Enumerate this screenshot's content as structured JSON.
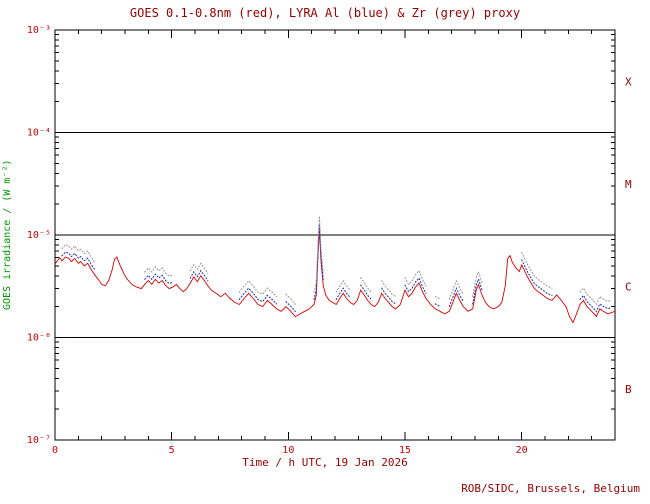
{
  "chart_data": {
    "type": "line",
    "title": "GOES 0.1-0.8nm (red), LYRA Al (blue) & Zr (grey) proxy",
    "xlabel": "Time / h UTC, 19 Jan 2026",
    "ylabel": "GOES irradiance / (W m⁻²)",
    "footer": "ROB/SIDC, Brussels, Belgium",
    "xlim": [
      0,
      24
    ],
    "ylim_exp": [
      -7,
      -3
    ],
    "grid": "off",
    "legend": "none (colors named in title)",
    "x_major_ticks": [
      0,
      5,
      10,
      15,
      20
    ],
    "x_minor_step": 1,
    "y_tick_labels": [
      {
        "exp": -3,
        "label": "10⁻³"
      },
      {
        "exp": -4,
        "label": "10⁻⁴"
      },
      {
        "exp": -5,
        "label": "10⁻⁵"
      },
      {
        "exp": -6,
        "label": "10⁻⁶"
      },
      {
        "exp": -7,
        "label": "10⁻⁷"
      }
    ],
    "hlines_exp": [
      -4,
      -5,
      -6
    ],
    "flare_classes": [
      {
        "label": "X",
        "center_exp": -3.5
      },
      {
        "label": "M",
        "center_exp": -4.5
      },
      {
        "label": "C",
        "center_exp": -5.5
      },
      {
        "label": "B",
        "center_exp": -6.5
      }
    ],
    "colors": {
      "goes": "#dd0000",
      "al": "#2233bb",
      "zr": "#999999",
      "frame": "#000000",
      "tick_text": "#cc0000",
      "class_text": "#990000",
      "title_text": "#990000",
      "ylabel_text": "#009900",
      "footer_text": "#990000"
    },
    "series": [
      {
        "name": "GOES 0.1-0.8nm",
        "color_key": "goes",
        "style": "solid",
        "points": [
          [
            0.0,
            5.2e-06
          ],
          [
            0.1,
            5.6e-06
          ],
          [
            0.2,
            6e-06
          ],
          [
            0.3,
            5.6e-06
          ],
          [
            0.45,
            6.1e-06
          ],
          [
            0.6,
            5.9e-06
          ],
          [
            0.7,
            5.5e-06
          ],
          [
            0.85,
            5.9e-06
          ],
          [
            1.0,
            5.3e-06
          ],
          [
            1.1,
            5.5e-06
          ],
          [
            1.25,
            5e-06
          ],
          [
            1.4,
            5.3e-06
          ],
          [
            1.55,
            4.6e-06
          ],
          [
            1.7,
            4.1e-06
          ],
          [
            1.85,
            3.7e-06
          ],
          [
            2.0,
            3.3e-06
          ],
          [
            2.15,
            3.2e-06
          ],
          [
            2.3,
            3.6e-06
          ],
          [
            2.45,
            4.6e-06
          ],
          [
            2.55,
            5.8e-06
          ],
          [
            2.65,
            6.1e-06
          ],
          [
            2.8,
            5e-06
          ],
          [
            2.95,
            4.2e-06
          ],
          [
            3.1,
            3.7e-06
          ],
          [
            3.3,
            3.3e-06
          ],
          [
            3.5,
            3.1e-06
          ],
          [
            3.7,
            3e-06
          ],
          [
            3.85,
            3.3e-06
          ],
          [
            4.0,
            3.6e-06
          ],
          [
            4.15,
            3.3e-06
          ],
          [
            4.3,
            3.7e-06
          ],
          [
            4.45,
            3.4e-06
          ],
          [
            4.6,
            3.6e-06
          ],
          [
            4.75,
            3.2e-06
          ],
          [
            4.9,
            3e-06
          ],
          [
            5.05,
            3.1e-06
          ],
          [
            5.2,
            3.3e-06
          ],
          [
            5.35,
            3e-06
          ],
          [
            5.5,
            2.8e-06
          ],
          [
            5.65,
            3e-06
          ],
          [
            5.8,
            3.4e-06
          ],
          [
            5.95,
            3.9e-06
          ],
          [
            6.1,
            3.5e-06
          ],
          [
            6.25,
            4e-06
          ],
          [
            6.4,
            3.6e-06
          ],
          [
            6.55,
            3.2e-06
          ],
          [
            6.7,
            2.9e-06
          ],
          [
            6.9,
            2.7e-06
          ],
          [
            7.1,
            2.5e-06
          ],
          [
            7.3,
            2.7e-06
          ],
          [
            7.5,
            2.4e-06
          ],
          [
            7.7,
            2.2e-06
          ],
          [
            7.9,
            2.1e-06
          ],
          [
            8.1,
            2.4e-06
          ],
          [
            8.3,
            2.7e-06
          ],
          [
            8.5,
            2.4e-06
          ],
          [
            8.7,
            2.1e-06
          ],
          [
            8.9,
            2e-06
          ],
          [
            9.1,
            2.3e-06
          ],
          [
            9.3,
            2.1e-06
          ],
          [
            9.5,
            1.9e-06
          ],
          [
            9.7,
            1.8e-06
          ],
          [
            9.9,
            2e-06
          ],
          [
            10.1,
            1.8e-06
          ],
          [
            10.3,
            1.6e-06
          ],
          [
            10.5,
            1.7e-06
          ],
          [
            10.7,
            1.8e-06
          ],
          [
            10.9,
            1.9e-06
          ],
          [
            11.1,
            2.1e-06
          ],
          [
            11.2,
            2.6e-06
          ],
          [
            11.28,
            7e-06
          ],
          [
            11.33,
            1.15e-05
          ],
          [
            11.4,
            5.5e-06
          ],
          [
            11.5,
            3.2e-06
          ],
          [
            11.6,
            2.6e-06
          ],
          [
            11.75,
            2.3e-06
          ],
          [
            11.9,
            2.2e-06
          ],
          [
            12.05,
            2.1e-06
          ],
          [
            12.2,
            2.4e-06
          ],
          [
            12.35,
            2.7e-06
          ],
          [
            12.5,
            2.4e-06
          ],
          [
            12.65,
            2.2e-06
          ],
          [
            12.8,
            2.1e-06
          ],
          [
            12.95,
            2.3e-06
          ],
          [
            13.1,
            2.9e-06
          ],
          [
            13.25,
            2.6e-06
          ],
          [
            13.4,
            2.3e-06
          ],
          [
            13.55,
            2.1e-06
          ],
          [
            13.7,
            2e-06
          ],
          [
            13.85,
            2.2e-06
          ],
          [
            14.0,
            2.7e-06
          ],
          [
            14.15,
            2.4e-06
          ],
          [
            14.3,
            2.2e-06
          ],
          [
            14.45,
            2e-06
          ],
          [
            14.6,
            1.9e-06
          ],
          [
            14.8,
            2.1e-06
          ],
          [
            15.0,
            2.9e-06
          ],
          [
            15.15,
            2.5e-06
          ],
          [
            15.3,
            2.7e-06
          ],
          [
            15.45,
            3.1e-06
          ],
          [
            15.6,
            3.4e-06
          ],
          [
            15.75,
            2.8e-06
          ],
          [
            15.9,
            2.4e-06
          ],
          [
            16.1,
            2.1e-06
          ],
          [
            16.3,
            1.9e-06
          ],
          [
            16.5,
            1.8e-06
          ],
          [
            16.7,
            1.7e-06
          ],
          [
            16.9,
            1.8e-06
          ],
          [
            17.05,
            2.2e-06
          ],
          [
            17.2,
            2.7e-06
          ],
          [
            17.35,
            2.3e-06
          ],
          [
            17.5,
            2e-06
          ],
          [
            17.7,
            1.8e-06
          ],
          [
            17.9,
            1.9e-06
          ],
          [
            18.05,
            2.9e-06
          ],
          [
            18.15,
            3.3e-06
          ],
          [
            18.3,
            2.6e-06
          ],
          [
            18.45,
            2.2e-06
          ],
          [
            18.6,
            2e-06
          ],
          [
            18.8,
            1.9e-06
          ],
          [
            19.0,
            2e-06
          ],
          [
            19.15,
            2.2e-06
          ],
          [
            19.3,
            3.2e-06
          ],
          [
            19.4,
            5.9e-06
          ],
          [
            19.5,
            6.3e-06
          ],
          [
            19.6,
            5.4e-06
          ],
          [
            19.75,
            4.8e-06
          ],
          [
            19.9,
            4.4e-06
          ],
          [
            20.0,
            5.1e-06
          ],
          [
            20.1,
            4.6e-06
          ],
          [
            20.25,
            3.9e-06
          ],
          [
            20.4,
            3.4e-06
          ],
          [
            20.55,
            3e-06
          ],
          [
            20.7,
            2.8e-06
          ],
          [
            20.9,
            2.6e-06
          ],
          [
            21.1,
            2.4e-06
          ],
          [
            21.3,
            2.3e-06
          ],
          [
            21.5,
            2.6e-06
          ],
          [
            21.7,
            2.3e-06
          ],
          [
            21.9,
            2e-06
          ],
          [
            22.05,
            1.6e-06
          ],
          [
            22.2,
            1.4e-06
          ],
          [
            22.35,
            1.7e-06
          ],
          [
            22.5,
            2.1e-06
          ],
          [
            22.65,
            2.3e-06
          ],
          [
            22.8,
            2e-06
          ],
          [
            23.0,
            1.8e-06
          ],
          [
            23.2,
            1.6e-06
          ],
          [
            23.35,
            1.9e-06
          ],
          [
            23.5,
            1.8e-06
          ],
          [
            23.7,
            1.7e-06
          ],
          [
            23.85,
            1.75e-06
          ],
          [
            24.0,
            1.8e-06
          ]
        ]
      }
    ],
    "proxies": [
      {
        "name": "LYRA Al proxy",
        "color_key": "al",
        "style": "dotted",
        "factor": 1.12,
        "segments": [
          [
            0.3,
            1.7
          ],
          [
            3.8,
            5.1
          ],
          [
            5.7,
            6.6
          ],
          [
            7.9,
            9.6
          ],
          [
            9.9,
            10.4
          ],
          [
            11.1,
            11.5
          ],
          [
            12.0,
            12.7
          ],
          [
            13.0,
            13.6
          ],
          [
            14.0,
            14.6
          ],
          [
            15.0,
            15.9
          ],
          [
            16.3,
            16.6
          ],
          [
            16.9,
            17.5
          ],
          [
            17.9,
            18.4
          ],
          [
            20.0,
            21.3
          ],
          [
            22.4,
            23.9
          ]
        ]
      },
      {
        "name": "LYRA Zr proxy",
        "color_key": "zr",
        "style": "dotted",
        "factor": 1.32,
        "segments": [
          [
            0.3,
            1.7
          ],
          [
            3.8,
            5.1
          ],
          [
            5.7,
            6.6
          ],
          [
            7.9,
            9.6
          ],
          [
            9.9,
            10.4
          ],
          [
            11.1,
            11.5
          ],
          [
            12.0,
            12.7
          ],
          [
            13.0,
            13.6
          ],
          [
            14.0,
            14.6
          ],
          [
            15.0,
            15.9
          ],
          [
            16.3,
            16.6
          ],
          [
            16.9,
            17.5
          ],
          [
            17.9,
            18.4
          ],
          [
            20.0,
            21.3
          ],
          [
            22.4,
            23.9
          ]
        ]
      }
    ]
  }
}
